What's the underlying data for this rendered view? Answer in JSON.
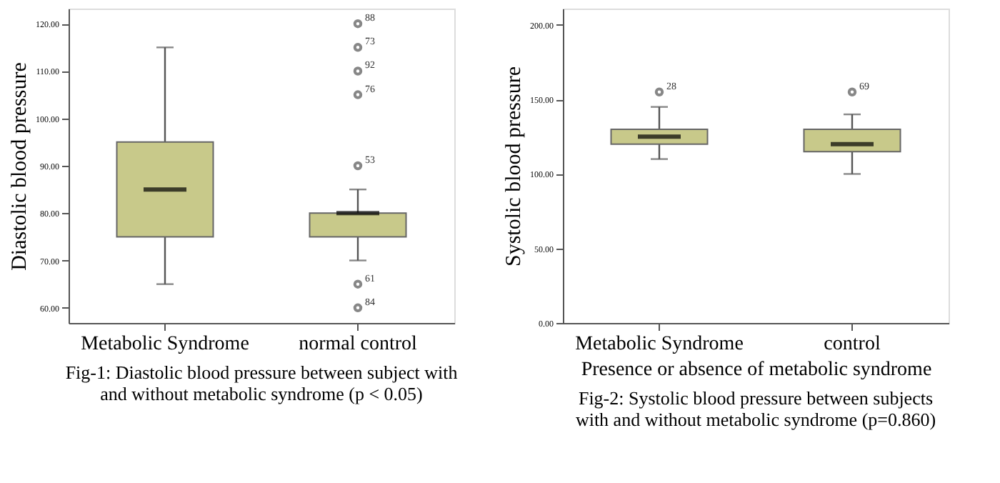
{
  "chart_data": [
    {
      "type": "box",
      "title": "Fig-1: Diastolic blood pressure between subject with and without metabolic syndrome (p < 0.05)",
      "ylabel": "Diastolic blood pressure",
      "categories": [
        "Metabolic Syndrome",
        "normal control"
      ],
      "color": "#c8c98a",
      "boxes": [
        {
          "low": 65,
          "q1": 75,
          "median": 85,
          "q3": 95,
          "high": 115
        },
        {
          "low": 70,
          "q1": 75,
          "median": 80,
          "q3": 80,
          "high": 85,
          "outliers": [
            120,
            115,
            110,
            105,
            90,
            65,
            60
          ]
        }
      ],
      "ylim": [
        56.8,
        123.2
      ],
      "yticks": [
        {
          "value": 60,
          "label": "60.00"
        },
        {
          "value": 70,
          "label": "70.00"
        },
        {
          "value": 80,
          "label": "80.00"
        },
        {
          "value": 90,
          "label": "90.00"
        },
        {
          "value": 100,
          "label": "100.00"
        },
        {
          "value": 110,
          "label": "110.00"
        },
        {
          "value": 120,
          "label": "120.00"
        }
      ],
      "annotations": [
        "88",
        "73",
        "92",
        "76",
        "53",
        "61",
        "84"
      ],
      "grid": false
    },
    {
      "type": "box",
      "title": "Fig-2: Systolic blood pressure between subjects with and without metabolic syndrome (p=0.860)",
      "xlabel": "Presence or absence of metabolic syndrome",
      "ylabel": "Systolic blood pressure",
      "categories": [
        "Metabolic Syndrome",
        "control"
      ],
      "color": "#c8c98a",
      "boxes": [
        {
          "low": 110,
          "q1": 120,
          "median": 125,
          "q3": 130,
          "high": 145,
          "outliers": [
            155
          ]
        },
        {
          "low": 100,
          "q1": 115,
          "median": 120,
          "q3": 130,
          "high": 140,
          "outliers": [
            155
          ]
        }
      ],
      "ylim": [
        0,
        211
      ],
      "yticks": [
        {
          "value": 0,
          "label": "0.00"
        },
        {
          "value": 50,
          "label": "50.00"
        },
        {
          "value": 100,
          "label": "100.00"
        },
        {
          "value": 150,
          "label": "150.00"
        },
        {
          "value": 200,
          "label": "200.00"
        }
      ],
      "annotations": [
        "28",
        "69"
      ],
      "grid": false
    }
  ]
}
